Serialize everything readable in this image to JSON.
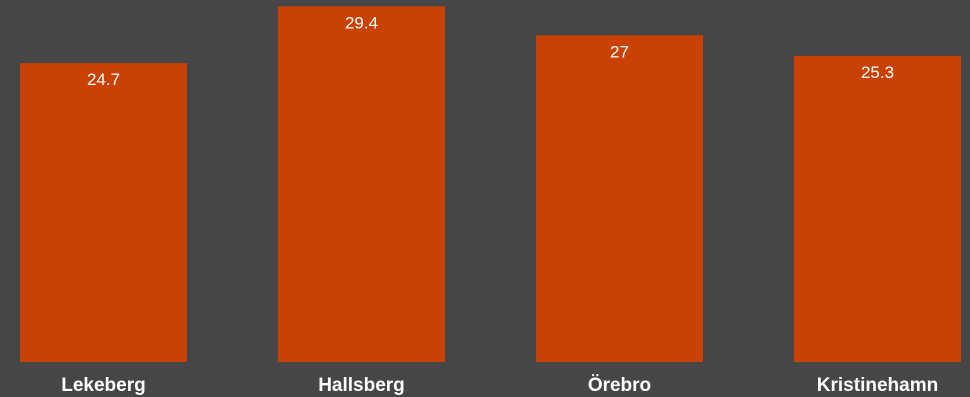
{
  "chart_data": {
    "type": "bar",
    "categories": [
      "Lekeberg",
      "Hallsberg",
      "Örebro",
      "Kristinehamn"
    ],
    "values": [
      24.7,
      29.4,
      27,
      25.3
    ],
    "value_labels": [
      "24.7",
      "29.4",
      "27",
      "25.3"
    ],
    "title": "",
    "xlabel": "",
    "ylabel": "",
    "ylim": [
      0,
      30
    ],
    "grid": false,
    "legend": "none"
  },
  "colors": {
    "background": "#464646",
    "bar": "#c94105",
    "text": "#ffffff"
  }
}
